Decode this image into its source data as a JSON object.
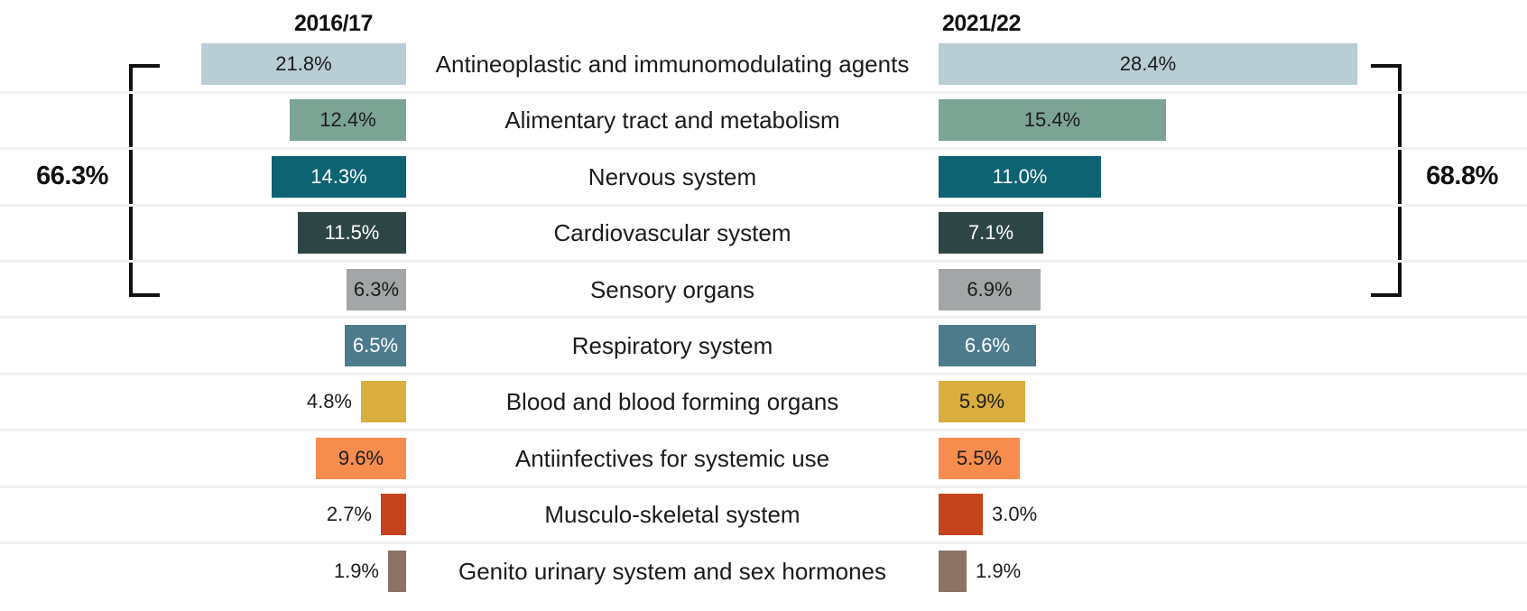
{
  "chart_data": {
    "type": "bar",
    "variant": "butterfly-comparison",
    "categories": [
      "Antineoplastic and immunomodulating agents",
      "Alimentary tract and metabolism",
      "Nervous system",
      "Cardiovascular system",
      "Sensory organs",
      "Respiratory system",
      "Blood and blood forming organs",
      "Antiinfectives for systemic use",
      "Musculo-skeletal system",
      "Genito urinary system and sex hormones"
    ],
    "series": [
      {
        "name": "2016/17",
        "values": [
          21.8,
          12.4,
          14.3,
          11.5,
          6.3,
          6.5,
          4.8,
          9.6,
          2.7,
          1.9
        ]
      },
      {
        "name": "2021/22",
        "values": [
          28.4,
          15.4,
          11.0,
          7.1,
          6.9,
          6.6,
          5.9,
          5.5,
          3.0,
          1.9
        ]
      }
    ],
    "value_suffix": "%",
    "bar_colors": [
      "#b8cdd4",
      "#7ca495",
      "#0d6371",
      "#2d4645",
      "#a2a6a6",
      "#4d7b8c",
      "#d9ad3e",
      "#f68c4e",
      "#c5431d",
      "#8d7365"
    ],
    "value_text_colors": [
      "#1c1c1c",
      "#1c1c1c",
      "#ffffff",
      "#ffffff",
      "#1c1c1c",
      "#ffffff",
      "#1c1c1c",
      "#1c1c1c",
      "#1c1c1c",
      "#1c1c1c"
    ],
    "annotations": {
      "left_bracket_label": "66.3%",
      "right_bracket_label": "68.8%",
      "bracket_covers_categories": [
        "Antineoplastic and immunomodulating agents",
        "Alimentary tract and metabolism",
        "Nervous system",
        "Cardiovascular system",
        "Sensory organs"
      ]
    },
    "layout_hints": {
      "left_series_direction": "right-to-left",
      "right_series_direction": "left-to-right",
      "grid": "horizontal row separators only",
      "value_labels": "inside bar when value >= 5, outside otherwise"
    }
  }
}
